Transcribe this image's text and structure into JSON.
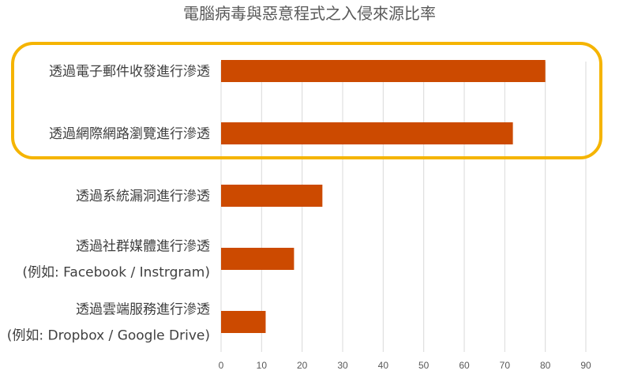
{
  "chart_data": {
    "type": "bar",
    "orientation": "horizontal",
    "title": "電腦病毒與惡意程式之入侵來源比率",
    "categories": [
      [
        "透過電子郵件收發進行滲透"
      ],
      [
        "透過網際網路瀏覽進行滲透"
      ],
      [
        "透過系統漏洞進行滲透"
      ],
      [
        "透過社群媒體進行滲透",
        "(例如: Facebook / Instrgram)"
      ],
      [
        "透過雲端服務進行滲透",
        "(例如: Dropbox / Google Drive)"
      ]
    ],
    "values": [
      80,
      72,
      25,
      18,
      11
    ],
    "xlim": [
      0,
      90
    ],
    "xticks": [
      0,
      10,
      20,
      30,
      40,
      50,
      60,
      70,
      80,
      90
    ],
    "grid": true,
    "highlighted_categories": [
      0,
      1
    ],
    "colors": {
      "bar": "#cc4a00",
      "highlight": "#f5b400",
      "grid": "#d9d9d9"
    }
  }
}
